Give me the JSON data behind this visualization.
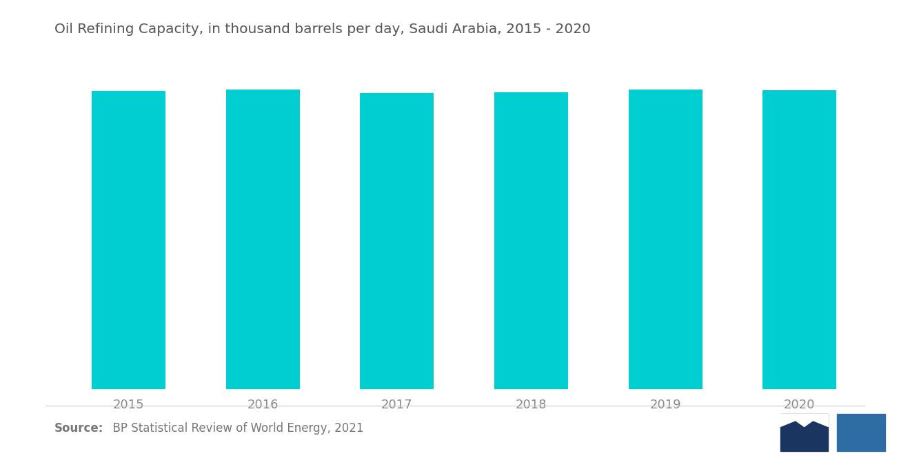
{
  "categories": [
    "2015",
    "2016",
    "2017",
    "2018",
    "2019",
    "2020"
  ],
  "values": [
    2967,
    2986,
    2951,
    2954,
    2981,
    2978
  ],
  "bar_color": "#00CED1",
  "title": "Oil Refining Capacity, in thousand barrels per day, Saudi Arabia, 2015 - 2020",
  "title_fontsize": 14.5,
  "title_color": "#555555",
  "tick_label_color": "#888888",
  "tick_fontsize": 13,
  "source_bold": "Source:",
  "source_text": "  BP Statistical Review of World Energy, 2021",
  "source_fontsize": 12,
  "source_color": "#777777",
  "background_color": "#ffffff",
  "bar_width": 0.55,
  "ylim_min": 0,
  "ylim_max": 3100
}
